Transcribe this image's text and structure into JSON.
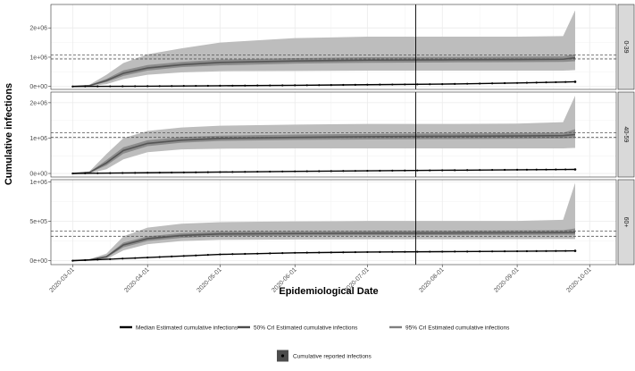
{
  "chart_data": {
    "type": "line",
    "xlabel": "Epidemiological Date",
    "ylabel": "Cumulative infections",
    "x_ticks": [
      "2020-03-01",
      "2020-04-01",
      "2020-05-01",
      "2020-06-01",
      "2020-07-01",
      "2020-08-01",
      "2020-09-01",
      "2020-10-01"
    ],
    "xlim": [
      "2020-02-21",
      "2020-10-12"
    ],
    "vline_date": "2020-07-21",
    "panels": [
      {
        "facet": "0-39",
        "ylim": [
          -100000,
          2800000
        ],
        "y_ticks": [
          0,
          1000000,
          2000000
        ],
        "y_tick_labels": [
          "0e+00",
          "1e+06",
          "2e+06"
        ],
        "hlines": [
          940000,
          1080000
        ],
        "dates": [
          "2020-03-01",
          "2020-03-08",
          "2020-03-15",
          "2020-03-22",
          "2020-04-01",
          "2020-04-15",
          "2020-05-01",
          "2020-06-01",
          "2020-07-01",
          "2020-08-01",
          "2020-09-01",
          "2020-09-20",
          "2020-09-25"
        ],
        "median": [
          0,
          30000,
          200000,
          450000,
          630000,
          740000,
          820000,
          870000,
          900000,
          910000,
          920000,
          930000,
          980000
        ],
        "cri50_lower": [
          0,
          20000,
          150000,
          360000,
          540000,
          660000,
          720000,
          780000,
          810000,
          820000,
          830000,
          840000,
          860000
        ],
        "cri50_upper": [
          0,
          40000,
          260000,
          550000,
          730000,
          840000,
          920000,
          970000,
          1000000,
          1010000,
          1020000,
          1030000,
          1100000
        ],
        "cri95_lower": [
          0,
          5000,
          80000,
          250000,
          400000,
          480000,
          520000,
          530000,
          540000,
          540000,
          540000,
          540000,
          560000
        ],
        "cri95_upper": [
          0,
          60000,
          400000,
          800000,
          1100000,
          1300000,
          1500000,
          1650000,
          1700000,
          1700000,
          1700000,
          1720000,
          2600000
        ],
        "reported_dates": [
          "2020-03-01",
          "2020-04-01",
          "2020-05-01",
          "2020-06-01",
          "2020-07-01",
          "2020-08-01",
          "2020-09-01",
          "2020-09-25"
        ],
        "reported": [
          0,
          10000,
          25000,
          40000,
          60000,
          80000,
          120000,
          160000
        ]
      },
      {
        "facet": "40-59",
        "ylim": [
          -100000,
          2300000
        ],
        "y_ticks": [
          0,
          1000000,
          2000000
        ],
        "y_tick_labels": [
          "0e+00",
          "1e+06",
          "2e+06"
        ],
        "hlines": [
          1020000,
          1150000
        ],
        "dates": [
          "2020-03-01",
          "2020-03-08",
          "2020-03-15",
          "2020-03-22",
          "2020-04-01",
          "2020-04-15",
          "2020-05-01",
          "2020-06-01",
          "2020-07-01",
          "2020-08-01",
          "2020-09-01",
          "2020-09-20",
          "2020-09-25"
        ],
        "median": [
          0,
          30000,
          300000,
          650000,
          850000,
          940000,
          990000,
          1020000,
          1040000,
          1050000,
          1060000,
          1070000,
          1100000
        ],
        "cri50_lower": [
          0,
          20000,
          230000,
          560000,
          770000,
          870000,
          920000,
          950000,
          960000,
          970000,
          980000,
          990000,
          1000000
        ],
        "cri50_upper": [
          0,
          40000,
          380000,
          740000,
          940000,
          1030000,
          1070000,
          1100000,
          1120000,
          1130000,
          1140000,
          1150000,
          1250000
        ],
        "cri95_lower": [
          0,
          5000,
          120000,
          400000,
          600000,
          680000,
          700000,
          710000,
          710000,
          710000,
          710000,
          710000,
          720000
        ],
        "cri95_upper": [
          0,
          60000,
          550000,
          1000000,
          1200000,
          1300000,
          1350000,
          1380000,
          1400000,
          1400000,
          1410000,
          1450000,
          2200000
        ],
        "reported_dates": [
          "2020-03-01",
          "2020-04-01",
          "2020-05-01",
          "2020-06-01",
          "2020-07-01",
          "2020-08-01",
          "2020-09-01",
          "2020-09-25"
        ],
        "reported": [
          0,
          20000,
          40000,
          60000,
          75000,
          90000,
          105000,
          115000
        ]
      },
      {
        "facet": "60+",
        "ylim": [
          -50000,
          1030000
        ],
        "y_ticks": [
          0,
          500000,
          1000000
        ],
        "y_tick_labels": [
          "0e+00",
          "5e+05",
          "1e+06"
        ],
        "hlines": [
          310000,
          375000
        ],
        "dates": [
          "2020-03-01",
          "2020-03-08",
          "2020-03-15",
          "2020-03-22",
          "2020-04-01",
          "2020-04-15",
          "2020-05-01",
          "2020-06-01",
          "2020-07-01",
          "2020-08-01",
          "2020-09-01",
          "2020-09-20",
          "2020-09-25"
        ],
        "median": [
          0,
          10000,
          50000,
          200000,
          280000,
          320000,
          340000,
          345000,
          350000,
          352000,
          355000,
          357000,
          360000
        ],
        "cri50_lower": [
          0,
          8000,
          40000,
          170000,
          250000,
          290000,
          310000,
          318000,
          322000,
          325000,
          327000,
          330000,
          330000
        ],
        "cri50_upper": [
          0,
          12000,
          60000,
          230000,
          310000,
          350000,
          370000,
          375000,
          380000,
          382000,
          385000,
          388000,
          410000
        ],
        "cri95_lower": [
          0,
          3000,
          20000,
          130000,
          210000,
          250000,
          265000,
          270000,
          272000,
          273000,
          274000,
          275000,
          275000
        ],
        "cri95_upper": [
          0,
          20000,
          90000,
          310000,
          420000,
          470000,
          490000,
          500000,
          505000,
          505000,
          505000,
          520000,
          990000
        ],
        "reported_dates": [
          "2020-03-01",
          "2020-04-01",
          "2020-05-01",
          "2020-06-01",
          "2020-07-01",
          "2020-08-01",
          "2020-09-01",
          "2020-09-25"
        ],
        "reported": [
          0,
          40000,
          80000,
          100000,
          110000,
          115000,
          120000,
          125000
        ]
      }
    ],
    "legend": {
      "placement": "bottom",
      "items": [
        {
          "label": "Median Estimated cumulative infections",
          "kind": "line",
          "color": "#000000"
        },
        {
          "label": "50% CrI Estimated cumulative infections",
          "kind": "line",
          "color": "#4d4d4d"
        },
        {
          "label": "95% CrI Estimated cumulative infections",
          "kind": "line",
          "color": "#7f7f7f"
        },
        {
          "label": "Cumulative reported infections",
          "kind": "point",
          "color": "#000000"
        }
      ]
    },
    "colors": {
      "band95": "#bdbdbd",
      "band50": "#8c8c8c",
      "median": "#555555",
      "reported": "#000000",
      "hline": "#555555",
      "grid": "#ebebeb",
      "strip": "#d9d9d9"
    }
  }
}
